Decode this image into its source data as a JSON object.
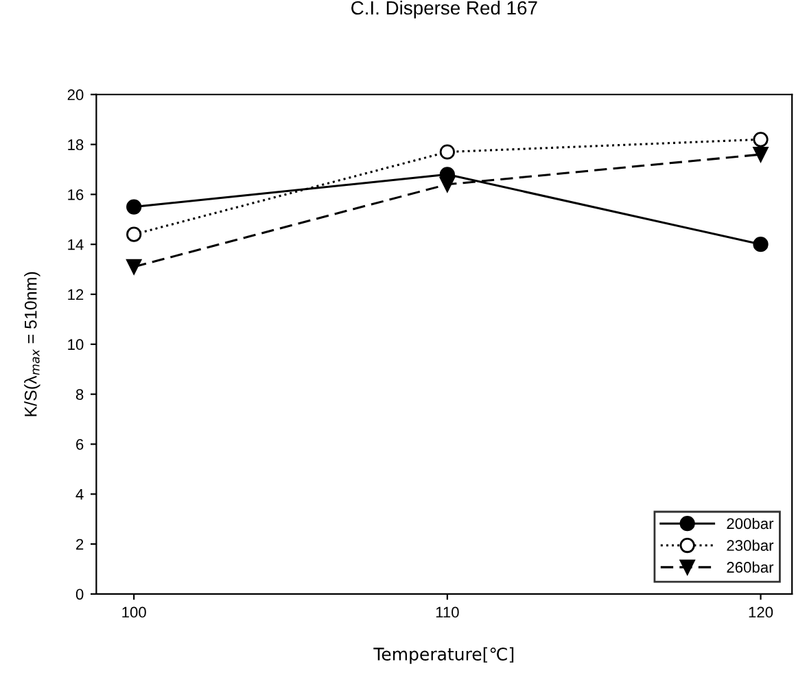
{
  "chart_data": {
    "type": "line",
    "title": "C.I. Disperse Red 167",
    "xlabel": "Temperature[℃]",
    "ylabel": "K/S(λ$_{max}$ = 510nm)",
    "x": [
      100,
      110,
      120
    ],
    "xlim": [
      98.8,
      121
    ],
    "xticks": [
      100,
      110,
      120
    ],
    "ylim": [
      0,
      20
    ],
    "yticks": [
      0,
      2,
      4,
      6,
      8,
      10,
      12,
      14,
      16,
      18,
      20
    ],
    "grid": false,
    "legend": "bottom right",
    "series": [
      {
        "name": "200bar",
        "color": "#000000",
        "values": [
          15.5,
          16.8,
          14.0
        ],
        "marker": "circle",
        "line_style": "solid"
      },
      {
        "name": "230bar",
        "color": "#000000",
        "values": [
          14.4,
          17.7,
          18.2
        ],
        "marker": "open circle",
        "line_style": "dotted"
      },
      {
        "name": "260bar",
        "color": "#000000",
        "values": [
          13.1,
          16.4,
          17.6
        ],
        "marker": "triangle",
        "line_style": "dashed"
      }
    ]
  }
}
